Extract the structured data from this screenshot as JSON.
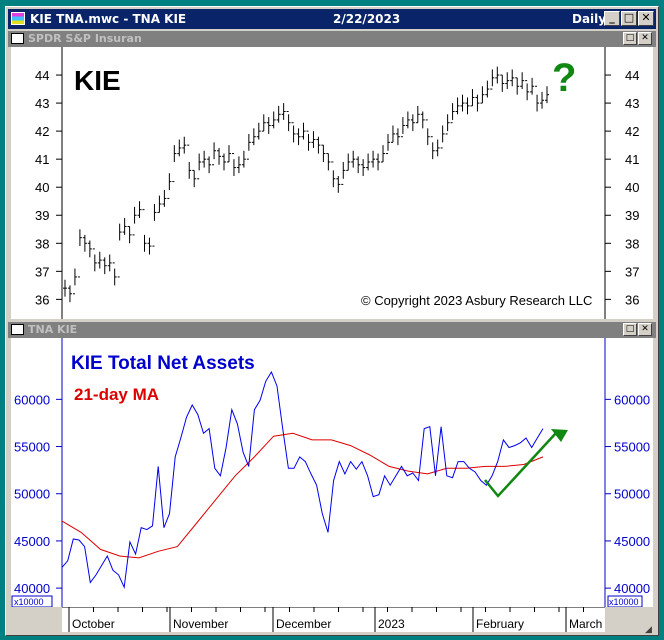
{
  "window": {
    "title": "KIE TNA.mwc - TNA KIE",
    "date": "2/22/2023",
    "period": "Daily",
    "minimize": "_",
    "maximize": "□",
    "close": "✕"
  },
  "pane1": {
    "title": "SPDR S&P Insuran",
    "label": "KIE",
    "question": "?",
    "copyright": "© Copyright 2023 Asbury Research LLC",
    "restore": "□",
    "close": "✕"
  },
  "pane2": {
    "title": "TNA KIE",
    "label1": "KIE Total Net Assets",
    "label2": "21-day MA",
    "multiplier": "x10000",
    "restore": "□",
    "close": "✕"
  },
  "colors": {
    "titlebar": "#0a246a",
    "tna": "#0000cc",
    "ma": "#dd0000",
    "annotation": "#118811"
  },
  "date_axis": [
    "October",
    "November",
    "December",
    "2023",
    "February",
    "March"
  ],
  "chart_data": [
    {
      "type": "ohlc",
      "title": "KIE",
      "ylim": [
        35.3,
        45
      ],
      "yticks": [
        36,
        37,
        38,
        39,
        40,
        41,
        42,
        43,
        44
      ],
      "close": [
        36.4,
        36.2,
        36.8,
        38.2,
        38.0,
        37.8,
        37.3,
        37.4,
        37.2,
        37.3,
        36.8,
        38.4,
        38.6,
        38.3,
        39.0,
        39.2,
        38.0,
        37.9,
        39.1,
        39.4,
        39.6,
        40.2,
        41.2,
        41.4,
        41.5,
        40.6,
        40.3,
        40.9,
        41.0,
        40.8,
        41.3,
        41.1,
        40.9,
        41.2,
        40.7,
        40.8,
        41.0,
        41.6,
        41.8,
        42.0,
        42.3,
        42.2,
        42.4,
        42.6,
        42.7,
        42.3,
        41.9,
        41.8,
        42.0,
        41.6,
        41.7,
        41.5,
        41.2,
        40.9,
        40.3,
        40.1,
        40.6,
        40.9,
        41.0,
        40.8,
        40.7,
        40.9,
        41.0,
        40.9,
        41.2,
        41.6,
        41.9,
        41.8,
        42.2,
        42.4,
        42.3,
        42.6,
        42.4,
        41.8,
        41.3,
        41.4,
        41.9,
        42.3,
        42.7,
        42.9,
        43.0,
        42.9,
        43.2,
        43.0,
        43.3,
        43.5,
        43.9,
        44.0,
        43.7,
        43.8,
        43.9,
        43.6,
        43.8,
        43.4,
        43.6,
        43.0,
        43.1,
        43.3
      ]
    },
    {
      "type": "line",
      "title": "KIE Total Net Assets",
      "ylim": [
        38000,
        66500
      ],
      "yticks": [
        40000,
        45000,
        50000,
        55000,
        60000
      ],
      "series": [
        {
          "name": "KIE Total Net Assets",
          "values": [
            42200,
            42900,
            45200,
            45100,
            44400,
            40600,
            41400,
            42400,
            43400,
            41900,
            41400,
            40100,
            44900,
            43600,
            46400,
            46200,
            46600,
            52900,
            46400,
            47900,
            53900,
            55900,
            58100,
            59400,
            58400,
            56400,
            56900,
            52700,
            51900,
            54900,
            58900,
            57400,
            54400,
            52900,
            58900,
            59900,
            61900,
            62900,
            61400,
            56900,
            52700,
            52700,
            53900,
            53400,
            52100,
            50900,
            47900,
            45900,
            51400,
            53400,
            52100,
            53400,
            52600,
            53400,
            51900,
            49700,
            49900,
            51900,
            50900,
            51900,
            52900,
            51900,
            52200,
            51400,
            56900,
            57100,
            51900,
            57100,
            51900,
            51700,
            53400,
            53400,
            52700,
            52300,
            51400,
            50900,
            51900,
            53400,
            55700,
            54900,
            55100,
            55400,
            55900,
            54900,
            55900,
            56900
          ]
        },
        {
          "name": "21-day MA",
          "values": [
            47100,
            45900,
            44100,
            43400,
            43200,
            43900,
            44400,
            46900,
            49400,
            51900,
            53900,
            56100,
            56400,
            55700,
            55700,
            55100,
            54100,
            52900,
            52400,
            52100,
            52700,
            52700,
            52900,
            52900,
            53100,
            53900
          ]
        }
      ]
    }
  ]
}
